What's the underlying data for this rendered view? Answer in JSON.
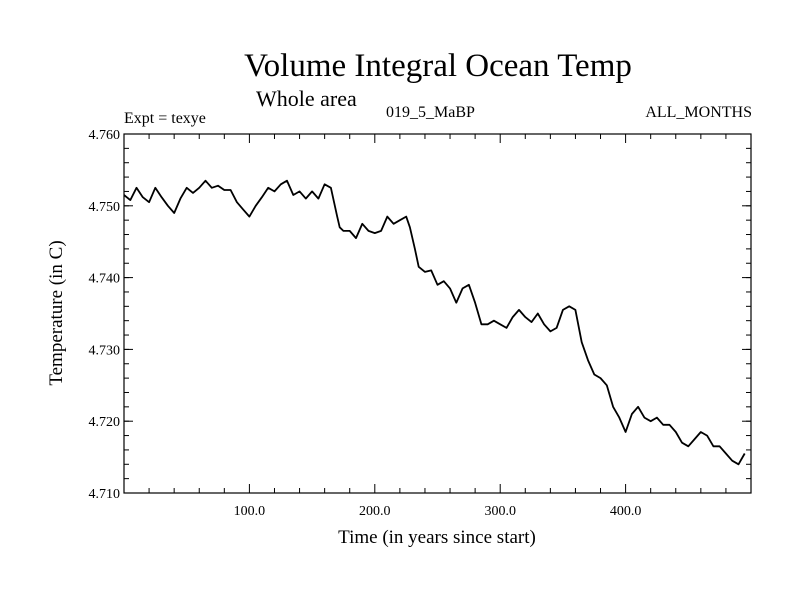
{
  "header": {
    "title": "Volume Integral Ocean Temp",
    "subtitle": "Whole area",
    "expt_label": "Expt = texye",
    "experiment_name": "019_5_MaBP",
    "months_label": "ALL_MONTHS"
  },
  "chart_data": {
    "type": "line",
    "title": "Volume Integral Ocean Temp",
    "subtitle": "Whole area",
    "xlabel": "Time (in years since start)",
    "ylabel": "Temperature (in C)",
    "xlim": [
      0,
      500
    ],
    "ylim": [
      4.71,
      4.76
    ],
    "x_ticks": [
      100,
      200,
      300,
      400
    ],
    "x_tick_labels": [
      "100.0",
      "200.0",
      "300.0",
      "400.0"
    ],
    "y_ticks": [
      4.71,
      4.72,
      4.73,
      4.74,
      4.75,
      4.76
    ],
    "y_tick_labels": [
      "4.710",
      "4.720",
      "4.730",
      "4.740",
      "4.750",
      "4.760"
    ],
    "grid": false,
    "series": [
      {
        "color": "#000000",
        "x": [
          0,
          5,
          10,
          15,
          20,
          25,
          30,
          35,
          40,
          45,
          50,
          55,
          60,
          65,
          70,
          75,
          80,
          85,
          90,
          95,
          100,
          105,
          110,
          115,
          120,
          125,
          130,
          135,
          140,
          145,
          150,
          155,
          160,
          165,
          170,
          172,
          175,
          180,
          185,
          190,
          195,
          200,
          205,
          210,
          215,
          220,
          225,
          228,
          232,
          235,
          240,
          245,
          250,
          255,
          260,
          265,
          270,
          275,
          280,
          285,
          290,
          295,
          300,
          305,
          310,
          315,
          320,
          325,
          330,
          335,
          340,
          345,
          350,
          355,
          360,
          365,
          370,
          375,
          380,
          385,
          390,
          395,
          400,
          405,
          410,
          415,
          420,
          425,
          430,
          435,
          440,
          445,
          450,
          455,
          460,
          465,
          470,
          475,
          480,
          485,
          490,
          495
        ],
        "y": [
          4.7515,
          4.7508,
          4.7525,
          4.7512,
          4.7505,
          4.7525,
          4.7512,
          4.75,
          4.749,
          4.751,
          4.7525,
          4.7518,
          4.7525,
          4.7535,
          4.7525,
          4.7528,
          4.7522,
          4.7522,
          4.7505,
          4.7495,
          4.7485,
          4.75,
          4.7512,
          4.7525,
          4.752,
          4.753,
          4.7535,
          4.7515,
          4.752,
          4.751,
          4.752,
          4.751,
          4.753,
          4.7525,
          4.7485,
          4.747,
          4.7465,
          4.7465,
          4.7455,
          4.7475,
          4.7465,
          4.7462,
          4.7465,
          4.7485,
          4.7475,
          4.748,
          4.7485,
          4.747,
          4.744,
          4.7415,
          4.7408,
          4.741,
          4.739,
          4.7395,
          4.7385,
          4.7365,
          4.7385,
          4.739,
          4.7365,
          4.7335,
          4.7335,
          4.734,
          4.7335,
          4.733,
          4.7345,
          4.7355,
          4.7345,
          4.7338,
          4.735,
          4.7335,
          4.7325,
          4.733,
          4.7355,
          4.736,
          4.7355,
          4.731,
          4.7285,
          4.7265,
          4.726,
          4.725,
          4.722,
          4.7205,
          4.7185,
          4.721,
          4.722,
          4.7205,
          4.72,
          4.7205,
          4.7195,
          4.7195,
          4.7185,
          4.717,
          4.7165,
          4.7175,
          4.7185,
          4.718,
          4.7165,
          4.7165,
          4.7155,
          4.7145,
          4.714,
          4.7155
        ]
      }
    ]
  }
}
